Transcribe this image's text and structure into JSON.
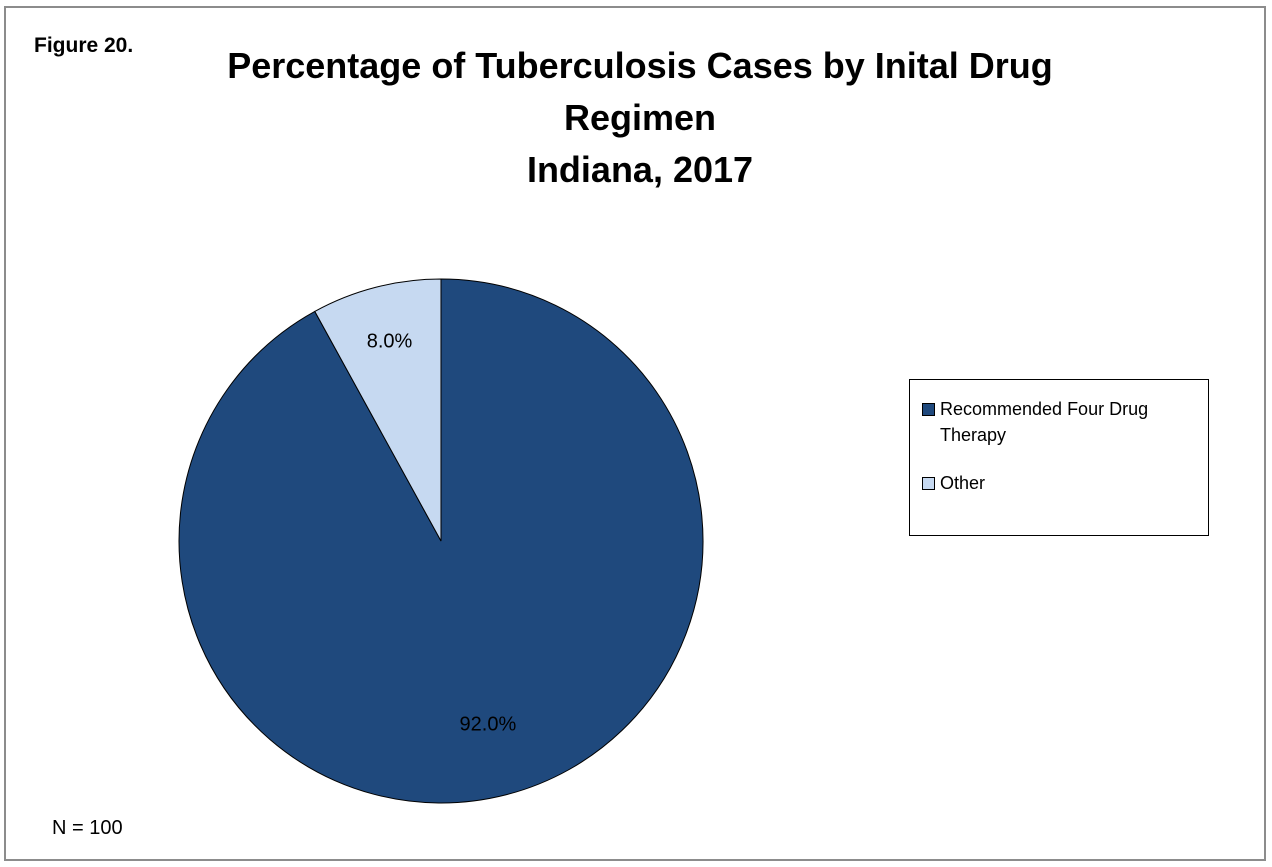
{
  "figure_label": "Figure 20.",
  "chart_data": {
    "type": "pie",
    "title_lines": [
      "Percentage of Tuberculosis Cases by Inital Drug",
      "Regimen",
      "Indiana, 2017"
    ],
    "slices": [
      {
        "name": "Recommended Four Drug Therapy",
        "value": 92.0,
        "label": "92.0%",
        "color": "#1f497d"
      },
      {
        "name": "Other",
        "value": 8.0,
        "label": "8.0%",
        "color": "#c6d9f1"
      }
    ],
    "legend_placement": "right",
    "legend": [
      "Recommended Four Drug Therapy",
      "Other"
    ]
  },
  "note": "N = 100"
}
